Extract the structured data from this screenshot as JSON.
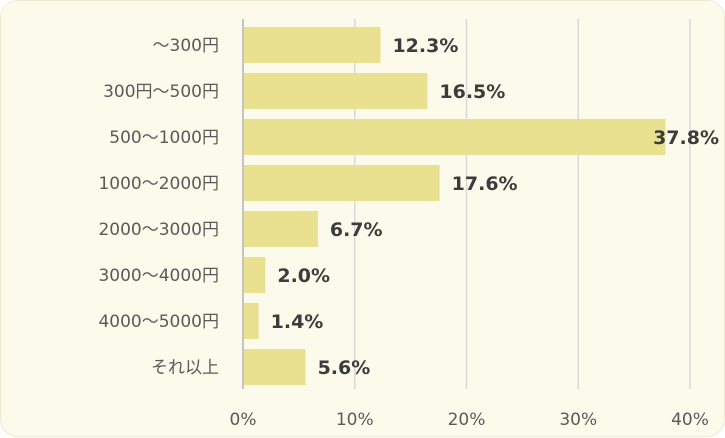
{
  "chart_data": {
    "type": "bar",
    "orientation": "horizontal",
    "categories": [
      "～300円",
      "300円～500円",
      "500～1000円",
      "1000～2000円",
      "2000～3000円",
      "3000～4000円",
      "4000～5000円",
      "それ以上"
    ],
    "values": [
      12.3,
      16.5,
      37.8,
      17.6,
      6.7,
      2.0,
      1.4,
      5.6
    ],
    "value_labels": [
      "12.3%",
      "16.5%",
      "37.8%",
      "17.6%",
      "6.7%",
      "2.0%",
      "1.4%",
      "5.6%"
    ],
    "x_ticks": [
      0,
      10,
      20,
      30,
      40
    ],
    "x_tick_labels": [
      "0%",
      "10%",
      "20%",
      "30%",
      "40%"
    ],
    "xlim": [
      0,
      40
    ],
    "grid": true,
    "title": "",
    "xlabel": "",
    "ylabel": "",
    "colors": {
      "bar": "#e9e18f",
      "background": "#fcfaea",
      "grid": "#d9d9d9",
      "axis": "#c4c4c4"
    }
  }
}
